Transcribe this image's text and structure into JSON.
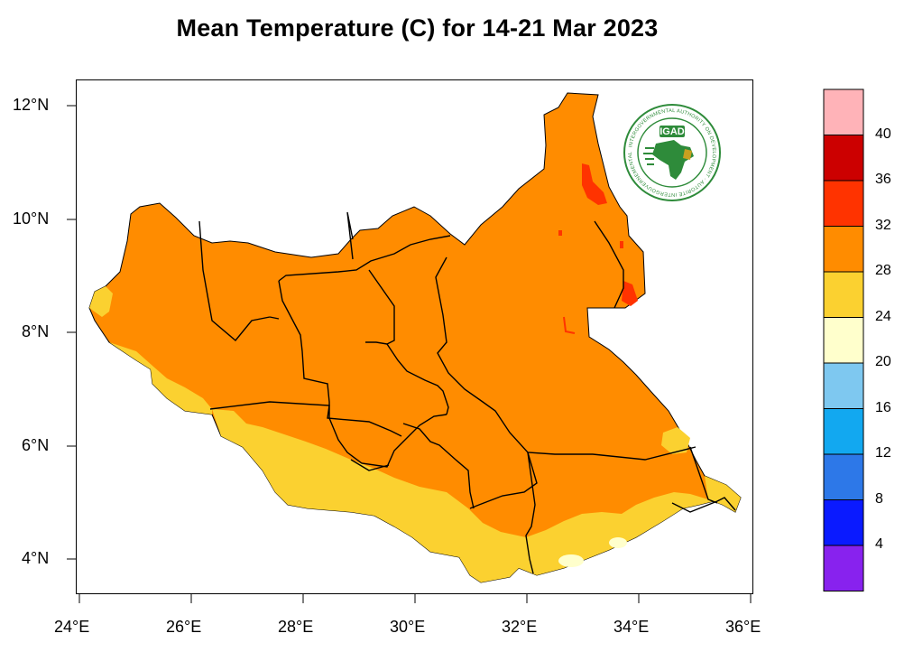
{
  "title": "Mean Temperature (C) for 14-21 Mar 2023",
  "logo": {
    "name": "igad-logo",
    "text": "IGAD",
    "ring_text": "INTERGOVERNMENTAL AUTHORITY ON DEVELOPMENT · AUTORITÉ INTERGOUVERNEMENTALE POUR LE DÉVELOPPEMENT"
  },
  "axes": {
    "x_ticks": [
      "24°E",
      "26°E",
      "28°E",
      "30°E",
      "32°E",
      "34°E",
      "36°E"
    ],
    "y_ticks": [
      "12°N",
      "10°N",
      "8°N",
      "6°N",
      "4°N"
    ]
  },
  "colorbar": {
    "labels": [
      "40",
      "36",
      "32",
      "28",
      "24",
      "20",
      "16",
      "12",
      "8",
      "4"
    ],
    "colors": [
      "#ffb3b8",
      "#cc0000",
      "#ff3300",
      "#ff8c00",
      "#fbd130",
      "#ffffcc",
      "#7ec8f0",
      "#12a8f0",
      "#2d78e8",
      "#0a1aff",
      "#8822ee"
    ]
  },
  "chart_data": {
    "type": "heatmap",
    "title": "Mean Temperature (C) for 14-21 Mar 2023",
    "xlim": [
      24,
      36
    ],
    "ylim": [
      3.3,
      12.4
    ],
    "x_ticks": [
      24,
      26,
      28,
      30,
      32,
      34,
      36
    ],
    "y_ticks": [
      4,
      6,
      8,
      10,
      12
    ],
    "levels": [
      4,
      8,
      12,
      16,
      20,
      24,
      28,
      32,
      36,
      40
    ],
    "dominant_range": "28-32",
    "south_range": "24-28",
    "hot_spots_range": "32-36"
  }
}
